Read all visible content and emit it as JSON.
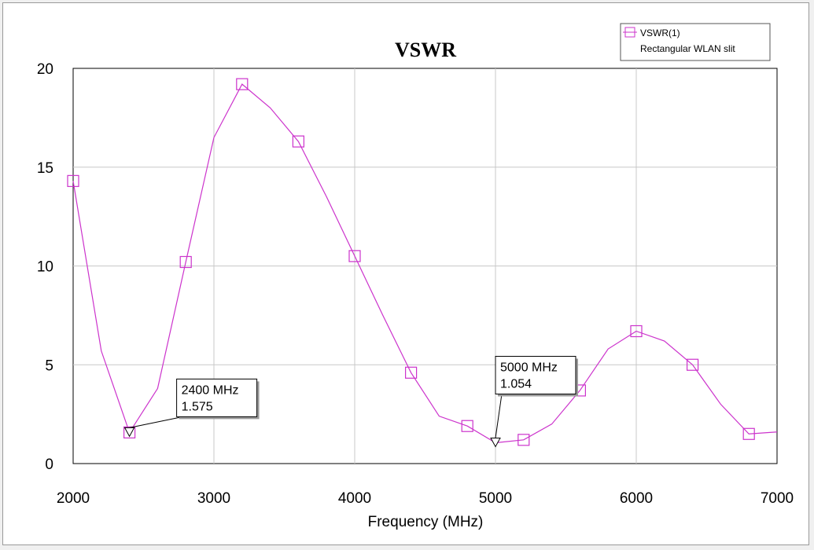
{
  "chart_data": {
    "type": "line",
    "title": "VSWR",
    "xlabel": "Frequency (MHz)",
    "ylabel": "",
    "xlim": [
      2000,
      7000
    ],
    "ylim": [
      0,
      20
    ],
    "xticks": [
      2000,
      3000,
      4000,
      5000,
      6000,
      7000
    ],
    "yticks": [
      0,
      5,
      10,
      15,
      20
    ],
    "grid": true,
    "legend_position": "top-right",
    "series": [
      {
        "name": "VSWR(1)",
        "subtitle": "Rectangular WLAN slit",
        "color": "#cc33cc",
        "x": [
          2000,
          2200,
          2400,
          2600,
          2800,
          3000,
          3200,
          3400,
          3600,
          3800,
          4000,
          4200,
          4400,
          4600,
          4800,
          5000,
          5200,
          5400,
          5600,
          5800,
          6000,
          6200,
          6400,
          6600,
          6800,
          7000
        ],
        "y": [
          14.3,
          5.7,
          1.575,
          3.8,
          10.2,
          16.5,
          19.2,
          18.0,
          16.3,
          13.5,
          10.5,
          7.5,
          4.6,
          2.4,
          1.9,
          1.054,
          1.2,
          2.0,
          3.7,
          5.8,
          6.7,
          6.2,
          5.0,
          3.0,
          1.5,
          1.6
        ],
        "markers_x": [
          2000,
          2400,
          2800,
          3200,
          3600,
          4000,
          4400,
          4800,
          5200,
          5600,
          6000,
          6400,
          6800
        ]
      }
    ],
    "annotations": [
      {
        "x": 2400,
        "y": 1.575,
        "line1": "2400 MHz",
        "line2": "1.575"
      },
      {
        "x": 5000,
        "y": 1.054,
        "line1": "5000 MHz",
        "line2": "1.054"
      }
    ]
  }
}
